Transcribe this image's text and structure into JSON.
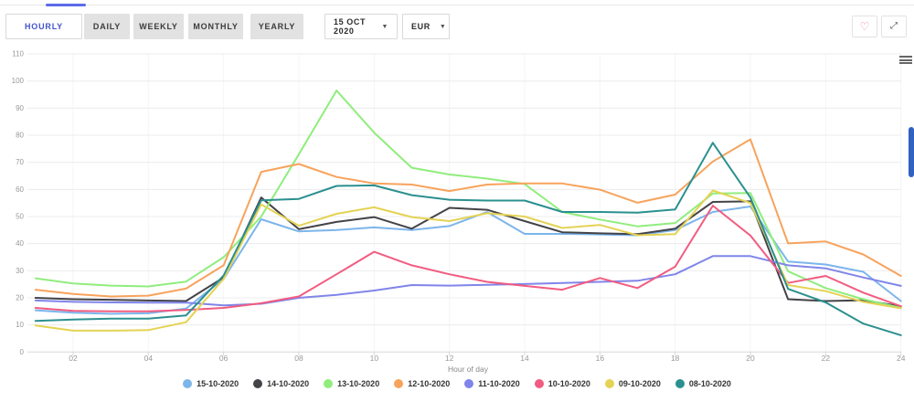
{
  "toolbar": {
    "tabs": [
      {
        "label": "HOURLY",
        "active": true
      },
      {
        "label": "DAILY",
        "active": false
      },
      {
        "label": "WEEKLY",
        "active": false
      },
      {
        "label": "MONTHLY",
        "active": false
      },
      {
        "label": "YEARLY",
        "active": false
      }
    ],
    "date_select": {
      "value": "15 OCT 2020"
    },
    "currency_select": {
      "value": "EUR"
    },
    "favorite_icon": "heart-outline-icon",
    "expand_icon": "fullscreen-expand-icon",
    "menu_icon": "hamburger-menu-icon"
  },
  "colors": {
    "accent_blue": "#4355cf",
    "tab_indicator": "#5b6be8",
    "scrollbar": "#3161c1",
    "grid": "#ececec",
    "axis_text": "#999999"
  },
  "chart_data": {
    "type": "line",
    "title": "",
    "xlabel": "Hour of day",
    "ylabel": "",
    "ylim": [
      0,
      110
    ],
    "grid": true,
    "legend_position": "bottom",
    "x": [
      1,
      2,
      3,
      4,
      5,
      6,
      7,
      8,
      9,
      10,
      11,
      12,
      13,
      14,
      15,
      16,
      17,
      18,
      19,
      20,
      21,
      22,
      23,
      24
    ],
    "x_tick_labels": [
      "02",
      "04",
      "06",
      "08",
      "10",
      "12",
      "14",
      "16",
      "18",
      "20",
      "22",
      "24"
    ],
    "y_ticks": [
      0,
      10,
      20,
      30,
      40,
      50,
      60,
      70,
      80,
      90,
      100,
      110
    ],
    "series": [
      {
        "name": "15-10-2020",
        "color": "#7cb5ec",
        "values": [
          15.4,
          14.5,
          14.1,
          14.3,
          16,
          27,
          49,
          44.5,
          45,
          46,
          45,
          46.5,
          51.7,
          43.6,
          43.6,
          43.4,
          43.1,
          45,
          51.7,
          53.7,
          33.4,
          32.3,
          29.6,
          18.8
        ]
      },
      {
        "name": "14-10-2020",
        "color": "#434348",
        "values": [
          20,
          19.5,
          19.3,
          19,
          18.8,
          27.5,
          57,
          45.3,
          48,
          49.8,
          45.5,
          53.2,
          52.5,
          48.3,
          44.2,
          43.8,
          43.5,
          45.5,
          55.4,
          55.6,
          19.5,
          18.8,
          19.1,
          16.9
        ]
      },
      {
        "name": "13-10-2020",
        "color": "#90ed7d",
        "values": [
          27.2,
          25.3,
          24.5,
          24.2,
          26,
          35,
          50,
          73,
          96.5,
          81,
          68,
          65.5,
          64,
          62,
          51.7,
          48.9,
          46.4,
          47.6,
          58.5,
          58.7,
          29.8,
          23.6,
          19.5,
          16.3
        ]
      },
      {
        "name": "12-10-2020",
        "color": "#f7a35c",
        "values": [
          23,
          21.4,
          20.5,
          20.8,
          23.4,
          32,
          66.5,
          69.4,
          64.6,
          62.2,
          61.8,
          59.4,
          61.8,
          62.2,
          62.2,
          59.9,
          55.1,
          58.1,
          70.3,
          78.5,
          40.1,
          40.8,
          36,
          28.1
        ]
      },
      {
        "name": "11-10-2020",
        "color": "#8085e9",
        "values": [
          19,
          18.5,
          18.3,
          18.2,
          18.2,
          17.2,
          17.8,
          20,
          21.1,
          22.7,
          24.7,
          24.5,
          24.8,
          25.1,
          25.5,
          25.9,
          26.3,
          28.7,
          35.4,
          35.4,
          32,
          30.9,
          27.5,
          24.4
        ]
      },
      {
        "name": "10-10-2020",
        "color": "#f15c80",
        "values": [
          16.3,
          15.2,
          15,
          15,
          15.5,
          16.3,
          18,
          20.5,
          28.7,
          37,
          32,
          28.7,
          25.9,
          24.4,
          23,
          27.3,
          23.6,
          31.5,
          54,
          43,
          25.5,
          28.1,
          21.9,
          16.9
        ]
      },
      {
        "name": "09-10-2020",
        "color": "#e4d354",
        "values": [
          9.8,
          7.9,
          7.9,
          8.1,
          11,
          27,
          54.5,
          46.6,
          51,
          53.4,
          49.8,
          48.3,
          51.2,
          50,
          45.8,
          46.9,
          43.1,
          43.5,
          59.6,
          55,
          24.7,
          22.5,
          18.5,
          16.1
        ]
      },
      {
        "name": "08-10-2020",
        "color": "#2b908f",
        "values": [
          11.5,
          12,
          12.3,
          12.3,
          13.5,
          28.3,
          56,
          56.5,
          61.3,
          61.5,
          57.9,
          56.2,
          55.9,
          55.9,
          51.7,
          51.7,
          51.4,
          52.6,
          77.2,
          57,
          23.3,
          18.3,
          10.5,
          6.2
        ]
      }
    ]
  }
}
